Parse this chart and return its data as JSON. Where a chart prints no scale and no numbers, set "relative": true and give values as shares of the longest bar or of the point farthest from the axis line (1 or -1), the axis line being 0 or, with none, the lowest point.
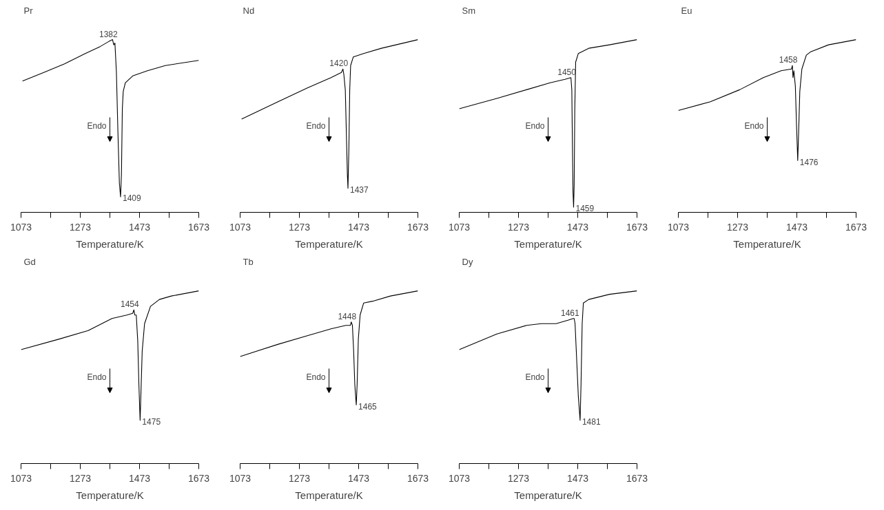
{
  "chart_data": [
    {
      "type": "line",
      "title": "Pr",
      "relative": true,
      "xlabel": "Temperature/K",
      "xlim": [
        1073,
        1673
      ],
      "xticks": [
        1073,
        {
          "value": 1173,
          "label": null
        },
        1273,
        {
          "value": 1373,
          "label": null
        },
        1473,
        {
          "value": 1573,
          "label": null
        },
        1673
      ],
      "grid": false,
      "tick_labels": "x",
      "series": [
        {
          "color": "#000000",
          "x": [
            1078,
            1150,
            1220,
            1290,
            1340,
            1370,
            1382,
            1386,
            1390,
            1395,
            1400,
            1405,
            1409,
            1412,
            1415,
            1418,
            1425,
            1450,
            1500,
            1560,
            1673
          ],
          "values": [
            0.76,
            0.81,
            0.86,
            0.92,
            0.96,
            0.99,
            1,
            0.97,
            0.98,
            0.81,
            0.47,
            0.17,
            0.09,
            0.22,
            0.6,
            0.7,
            0.75,
            0.79,
            0.82,
            0.85,
            0.88
          ]
        }
      ],
      "annotations": [
        {
          "text": "1382",
          "x": 1382,
          "y": 1
        },
        {
          "text": "1409",
          "x": 1409,
          "y": 0.09
        },
        "Endo"
      ]
    },
    {
      "type": "line",
      "title": "Nd",
      "relative": true,
      "xlabel": "Temperature/K",
      "xlim": [
        1073,
        1673
      ],
      "xticks": [
        1073,
        {
          "value": 1173,
          "label": null
        },
        1273,
        {
          "value": 1373,
          "label": null
        },
        1473,
        {
          "value": 1573,
          "label": null
        },
        1673
      ],
      "grid": false,
      "tick_labels": "x",
      "series": [
        {
          "color": "#000000",
          "x": [
            1078,
            1200,
            1300,
            1380,
            1415,
            1420,
            1423,
            1428,
            1432,
            1435,
            1437,
            1440,
            1443,
            1446,
            1455,
            1490,
            1550,
            1673
          ],
          "values": [
            0.54,
            0.64,
            0.72,
            0.78,
            0.81,
            0.83,
            0.8,
            0.71,
            0.43,
            0.22,
            0.14,
            0.36,
            0.71,
            0.85,
            0.9,
            0.92,
            0.95,
            1
          ]
        }
      ],
      "annotations": [
        {
          "text": "1420",
          "x": 1420,
          "y": 0.83
        },
        {
          "text": "1437",
          "x": 1437,
          "y": 0.14
        },
        "Endo"
      ]
    },
    {
      "type": "line",
      "title": "Sm",
      "relative": true,
      "xlabel": "Temperature/K",
      "xlim": [
        1073,
        1673
      ],
      "xticks": [
        1073,
        {
          "value": 1173,
          "label": null
        },
        1273,
        {
          "value": 1373,
          "label": null
        },
        1473,
        {
          "value": 1573,
          "label": null
        },
        1673
      ],
      "grid": false,
      "tick_labels": "x",
      "series": [
        {
          "color": "#000000",
          "x": [
            1073,
            1200,
            1300,
            1380,
            1430,
            1450,
            1453,
            1455,
            1457,
            1459,
            1461,
            1463,
            1466,
            1475,
            1510,
            1580,
            1673
          ],
          "values": [
            0.6,
            0.66,
            0.71,
            0.75,
            0.77,
            0.78,
            0.71,
            0.4,
            0.12,
            0.03,
            0.16,
            0.59,
            0.87,
            0.92,
            0.95,
            0.97,
            1
          ]
        }
      ],
      "annotations": [
        {
          "text": "1450",
          "x": 1450,
          "y": 0.78
        },
        {
          "text": "1459",
          "x": 1459,
          "y": 0.03
        },
        "Endo"
      ]
    },
    {
      "type": "line",
      "title": "Eu",
      "relative": true,
      "xlabel": "Temperature/K",
      "xlim": [
        1073,
        1673
      ],
      "xticks": [
        1073,
        {
          "value": 1173,
          "label": null
        },
        1273,
        {
          "value": 1373,
          "label": null
        },
        1473,
        {
          "value": 1573,
          "label": null
        },
        1673
      ],
      "grid": false,
      "tick_labels": "x",
      "series": [
        {
          "color": "#000000",
          "x": [
            1073,
            1180,
            1280,
            1360,
            1420,
            1455,
            1458,
            1460,
            1463,
            1468,
            1472,
            1476,
            1479,
            1483,
            1490,
            1505,
            1520,
            1580,
            1673
          ],
          "values": [
            0.59,
            0.64,
            0.71,
            0.78,
            0.82,
            0.83,
            0.85,
            0.78,
            0.82,
            0.73,
            0.5,
            0.3,
            0.46,
            0.7,
            0.83,
            0.91,
            0.93,
            0.97,
            1
          ]
        }
      ],
      "annotations": [
        {
          "text": "1458",
          "x": 1458,
          "y": 0.85
        },
        {
          "text": "1476",
          "x": 1476,
          "y": 0.3
        },
        "Endo"
      ]
    },
    {
      "type": "line",
      "title": "Gd",
      "relative": true,
      "xlabel": "Temperature/K",
      "xlim": [
        1073,
        1673
      ],
      "xticks": [
        1073,
        {
          "value": 1173,
          "label": null
        },
        1273,
        {
          "value": 1373,
          "label": null
        },
        1473,
        {
          "value": 1573,
          "label": null
        },
        1673
      ],
      "grid": false,
      "tick_labels": "x",
      "series": [
        {
          "color": "#000000",
          "x": [
            1073,
            1200,
            1300,
            1380,
            1430,
            1450,
            1454,
            1457,
            1462,
            1467,
            1471,
            1475,
            1478,
            1482,
            1490,
            1510,
            1540,
            1580,
            1673
          ],
          "values": [
            0.66,
            0.72,
            0.77,
            0.84,
            0.86,
            0.87,
            0.89,
            0.86,
            0.86,
            0.71,
            0.45,
            0.25,
            0.42,
            0.65,
            0.81,
            0.91,
            0.95,
            0.97,
            1
          ]
        }
      ],
      "annotations": [
        {
          "text": "1454",
          "x": 1454,
          "y": 0.89
        },
        {
          "text": "1475",
          "x": 1475,
          "y": 0.25
        },
        "Endo"
      ]
    },
    {
      "type": "line",
      "title": "Tb",
      "relative": true,
      "xlabel": "Temperature/K",
      "xlim": [
        1073,
        1673
      ],
      "xticks": [
        1073,
        {
          "value": 1173,
          "label": null
        },
        1273,
        {
          "value": 1373,
          "label": null
        },
        1473,
        {
          "value": 1573,
          "label": null
        },
        1673
      ],
      "grid": false,
      "tick_labels": "x",
      "series": [
        {
          "color": "#000000",
          "x": [
            1073,
            1200,
            1300,
            1380,
            1430,
            1445,
            1448,
            1452,
            1456,
            1460,
            1465,
            1468,
            1472,
            1478,
            1490,
            1520,
            1580,
            1673
          ],
          "values": [
            0.62,
            0.69,
            0.74,
            0.78,
            0.8,
            0.8,
            0.82,
            0.8,
            0.66,
            0.46,
            0.34,
            0.46,
            0.72,
            0.86,
            0.93,
            0.94,
            0.97,
            1
          ]
        }
      ],
      "annotations": [
        {
          "text": "1448",
          "x": 1448,
          "y": 0.82
        },
        {
          "text": "1465",
          "x": 1465,
          "y": 0.34
        },
        "Endo"
      ]
    },
    {
      "type": "line",
      "title": "Dy",
      "relative": true,
      "xlabel": "Temperature/K",
      "xlim": [
        1073,
        1673
      ],
      "xticks": [
        1073,
        {
          "value": 1173,
          "label": null
        },
        1273,
        {
          "value": 1373,
          "label": null
        },
        1473,
        {
          "value": 1573,
          "label": null
        },
        1673
      ],
      "grid": false,
      "tick_labels": "x",
      "series": [
        {
          "color": "#000000",
          "x": [
            1073,
            1200,
            1300,
            1350,
            1400,
            1440,
            1458,
            1461,
            1464,
            1470,
            1475,
            1481,
            1484,
            1488,
            1492,
            1510,
            1580,
            1673
          ],
          "values": [
            0.66,
            0.75,
            0.8,
            0.81,
            0.81,
            0.83,
            0.84,
            0.84,
            0.81,
            0.58,
            0.39,
            0.25,
            0.45,
            0.81,
            0.93,
            0.95,
            0.98,
            1
          ]
        }
      ],
      "annotations": [
        {
          "text": "1461",
          "x": 1461,
          "y": 0.84
        },
        {
          "text": "1481",
          "x": 1481,
          "y": 0.25
        },
        "Endo"
      ]
    }
  ]
}
